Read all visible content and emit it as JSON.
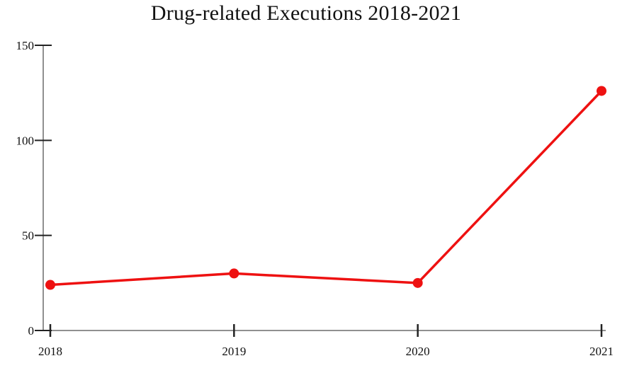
{
  "chart_data": {
    "type": "line",
    "title": "Drug-related Executions 2018-2021",
    "categories": [
      "2018",
      "2019",
      "2020",
      "2021"
    ],
    "values": [
      24,
      30,
      25,
      126
    ],
    "xlabel": "",
    "ylabel": "",
    "ylim": [
      0,
      150
    ],
    "yticks": [
      0,
      50,
      100,
      150
    ],
    "grid": false,
    "legend_position": "none",
    "line_color": "#ee1111",
    "marker": "circle",
    "axis_color": "#909090",
    "tick_color": "#222222",
    "text_color": "#111111",
    "background": "#ffffff"
  }
}
